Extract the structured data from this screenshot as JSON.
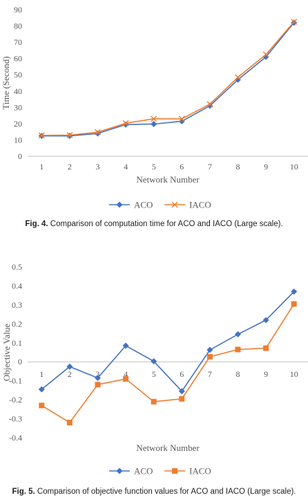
{
  "figures": [
    {
      "caption_label": "Fig. 4.",
      "caption_text": "Comparison of computation time for ACO and IACO (Large scale)."
    },
    {
      "caption_label": "Fig. 5.",
      "caption_text": "Comparison of objective function values for ACO and IACO (Large scale)."
    }
  ],
  "colors": {
    "aco": "#4472C4",
    "iaco": "#ED7D31",
    "grid": "#d9d9d9",
    "axis": "#bfbfbf"
  },
  "chart_data": [
    {
      "type": "line",
      "xlabel": "Network Number",
      "ylabel": "Time (Second)",
      "categories": [
        "1",
        "2",
        "3",
        "4",
        "5",
        "6",
        "7",
        "8",
        "9",
        "10"
      ],
      "ylim": [
        0,
        90
      ],
      "yticks": [
        0,
        10,
        20,
        30,
        40,
        50,
        60,
        70,
        80,
        90
      ],
      "grid": false,
      "legend": "bottom",
      "series": [
        {
          "name": "ACO",
          "marker": "diamond",
          "values": [
            12.5,
            12.5,
            14,
            19.5,
            19.8,
            21.5,
            31,
            47,
            61,
            82
          ]
        },
        {
          "name": "IACO",
          "marker": "cross",
          "values": [
            12.8,
            13,
            14.8,
            20.3,
            23,
            23,
            32,
            48.5,
            62.5,
            82.5
          ]
        }
      ]
    },
    {
      "type": "line",
      "xlabel": "Network Number",
      "ylabel": "Objective Value",
      "categories": [
        "1",
        "2",
        "3",
        "4",
        "5",
        "6",
        "7",
        "8",
        "9",
        "10"
      ],
      "ylim": [
        -0.4,
        0.5
      ],
      "yticks": [
        -0.4,
        -0.3,
        -0.2,
        -0.1,
        0,
        0.1,
        0.2,
        0.3,
        0.4,
        0.5
      ],
      "ytick_labels": [
        "-0.4",
        "-0.3",
        "-0.2",
        "-0.1",
        "0",
        "0.1",
        "0.2",
        "0.3",
        "0.4",
        "0.5"
      ],
      "grid": false,
      "legend": "bottom",
      "series": [
        {
          "name": "ACO",
          "marker": "diamond",
          "values": [
            -0.145,
            -0.025,
            -0.085,
            0.085,
            0.003,
            -0.155,
            0.063,
            0.145,
            0.22,
            0.37
          ]
        },
        {
          "name": "IACO",
          "marker": "square",
          "values": [
            -0.23,
            -0.32,
            -0.12,
            -0.09,
            -0.21,
            -0.195,
            0.027,
            0.065,
            0.072,
            0.305
          ]
        }
      ]
    }
  ]
}
